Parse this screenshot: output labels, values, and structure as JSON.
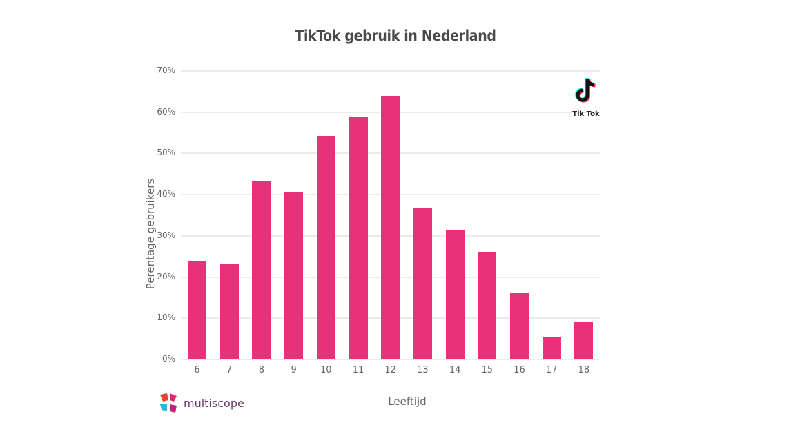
{
  "chart_data": {
    "type": "bar",
    "title": "TikTok gebruik in Nederland",
    "xlabel": "Leeftijd",
    "ylabel": "Perentage gebruikers",
    "categories": [
      "6",
      "7",
      "8",
      "9",
      "10",
      "11",
      "12",
      "13",
      "14",
      "15",
      "16",
      "17",
      "18"
    ],
    "values": [
      24,
      23.3,
      43.2,
      40.5,
      54.2,
      59,
      64,
      36.8,
      31.3,
      26.1,
      16.3,
      5.6,
      9.2
    ],
    "value_unit": "%",
    "ylim": [
      0,
      70
    ],
    "yticks": [
      "0%",
      "10%",
      "20%",
      "30%",
      "40%",
      "50%",
      "60%",
      "70%"
    ],
    "grid": true,
    "bar_color": "#e8317a"
  },
  "logos": {
    "tiktok_label": "Tik Tok",
    "multiscope_label": "multiscope"
  }
}
